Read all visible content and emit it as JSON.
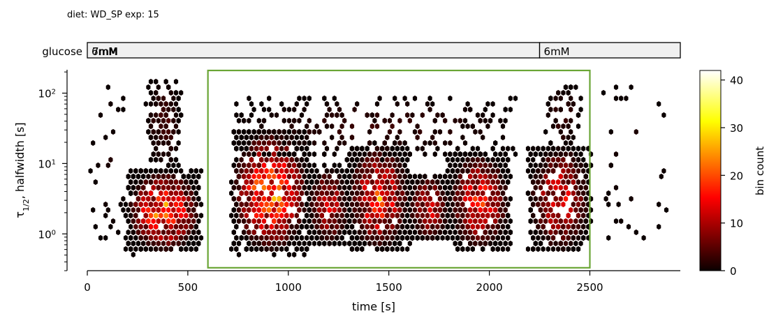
{
  "figure": {
    "title": "diet: WD_SP  exp: 15"
  },
  "glucose_bar": {
    "label": "glucose",
    "segments": [
      {
        "label": "6mM",
        "start": 0,
        "end": 2250,
        "overlap_label": "7mM"
      },
      {
        "label": "6mM",
        "start": 2250,
        "end": 2950
      }
    ],
    "fill": "#f0f0f0",
    "stroke": "#000000"
  },
  "chart_data": {
    "type": "heatmap",
    "kind": "hexbin",
    "colormap": "hot",
    "xlabel": "time [s]",
    "ylabel_main": "τ",
    "ylabel_sub": "1/2",
    "ylabel_rest": ", halfwidth [s]",
    "xlim": [
      0,
      2950
    ],
    "ylim": [
      0.3,
      210
    ],
    "yscale": "log",
    "x_ticks": [
      0,
      500,
      1000,
      1500,
      2000,
      2500
    ],
    "y_ticks": [
      {
        "value": 1,
        "label": "10",
        "exp": "0"
      },
      {
        "value": 10,
        "label": "10",
        "exp": "1"
      },
      {
        "value": 100,
        "label": "10",
        "exp": "2"
      }
    ],
    "highlight_box": {
      "x0": 600,
      "x1": 2500,
      "y0": 0.33,
      "y1": 210,
      "color": "#6aa535"
    },
    "colorbar": {
      "label": "bin count",
      "min": 0,
      "max": 42,
      "ticks": [
        0,
        10,
        20,
        30,
        40
      ]
    },
    "clusters": [
      {
        "x0": 200,
        "x1": 560,
        "ylo": 0.55,
        "yhi": 8,
        "peak": 34,
        "n": 700
      },
      {
        "x0": 300,
        "x1": 460,
        "ylo": 8,
        "yhi": 150,
        "peak": 6,
        "n": 140
      },
      {
        "x0": 720,
        "x1": 1100,
        "ylo": 0.55,
        "yhi": 30,
        "peak": 38,
        "n": 850
      },
      {
        "x0": 1100,
        "x1": 1300,
        "ylo": 0.7,
        "yhi": 9,
        "peak": 20,
        "n": 350
      },
      {
        "x0": 1300,
        "x1": 1600,
        "ylo": 0.6,
        "yhi": 18,
        "peak": 30,
        "n": 750
      },
      {
        "x0": 1600,
        "x1": 1800,
        "ylo": 0.8,
        "yhi": 7,
        "peak": 20,
        "n": 280
      },
      {
        "x0": 1800,
        "x1": 2100,
        "ylo": 0.6,
        "yhi": 14,
        "peak": 26,
        "n": 600
      },
      {
        "x0": 2200,
        "x1": 2500,
        "ylo": 0.55,
        "yhi": 18,
        "peak": 22,
        "n": 450
      },
      {
        "x0": 2280,
        "x1": 2450,
        "ylo": 15,
        "yhi": 130,
        "peak": 5,
        "n": 60
      },
      {
        "x0": 700,
        "x1": 2150,
        "ylo": 12,
        "yhi": 90,
        "peak": 4,
        "n": 260
      },
      {
        "x0": 2550,
        "x1": 2900,
        "ylo": 0.7,
        "yhi": 130,
        "peak": 2,
        "n": 30
      },
      {
        "x0": 20,
        "x1": 200,
        "ylo": 0.8,
        "yhi": 130,
        "peak": 2,
        "n": 30
      }
    ]
  }
}
